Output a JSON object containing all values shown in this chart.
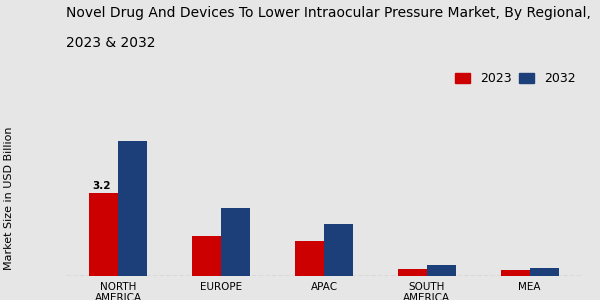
{
  "title_line1": "Novel Drug And Devices To Lower Intraocular Pressure Market, By Regional,",
  "title_line2": "2023 & 2032",
  "ylabel": "Market Size in USD Billion",
  "categories": [
    "NORTH\nAMERICA",
    "EUROPE",
    "APAC",
    "SOUTH\nAMERICA",
    "MEA"
  ],
  "values_2023": [
    3.2,
    1.55,
    1.35,
    0.28,
    0.22
  ],
  "values_2032": [
    5.2,
    2.6,
    2.0,
    0.42,
    0.32
  ],
  "color_2023": "#cc0000",
  "color_2032": "#1c3f7a",
  "label_2023": "2023",
  "label_2032": "2032",
  "annotation_value": "3.2",
  "annotation_region_idx": 0,
  "background_color": "#e6e6e6",
  "bar_width": 0.28,
  "title_fontsize": 10,
  "ylabel_fontsize": 8,
  "tick_fontsize": 7.5,
  "legend_fontsize": 9,
  "bottom_bar_color": "#cc0000"
}
